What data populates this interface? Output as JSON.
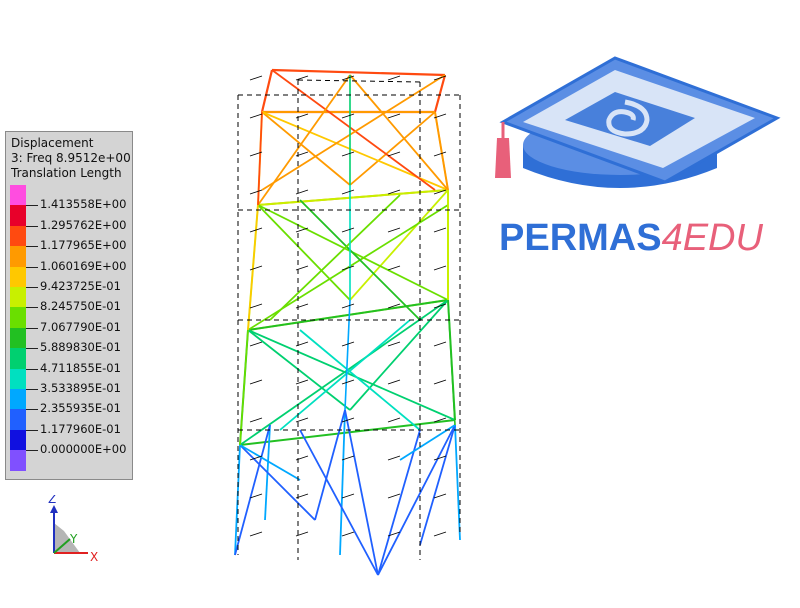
{
  "legend": {
    "title": "Displacement",
    "subtitle": "3: Freq 8.9512e+00",
    "quantity": "Translation Length",
    "values": [
      "1.413558E+00",
      "1.295762E+00",
      "1.177965E+00",
      "1.060169E+00",
      "9.423725E-01",
      "8.245750E-01",
      "7.067790E-01",
      "5.889830E-01",
      "4.711855E-01",
      "3.533895E-01",
      "2.355935E-01",
      "1.177960E-01",
      "0.000000E+00"
    ],
    "colors": [
      "#ff4de0",
      "#e8002a",
      "#ff4a10",
      "#ff9a00",
      "#ffc800",
      "#c8f000",
      "#6adf00",
      "#22c022",
      "#00d070",
      "#00e0c0",
      "#00a8ff",
      "#2060ff",
      "#1010e0",
      "#8050ff"
    ]
  },
  "logo": {
    "text_main": "PERMAS",
    "text_accent": "4EDU",
    "main_color": "#2f6fd6",
    "accent_color": "#e8607a"
  },
  "axes": {
    "z_label": "Z",
    "y_label": "Y",
    "x_label": "X"
  }
}
